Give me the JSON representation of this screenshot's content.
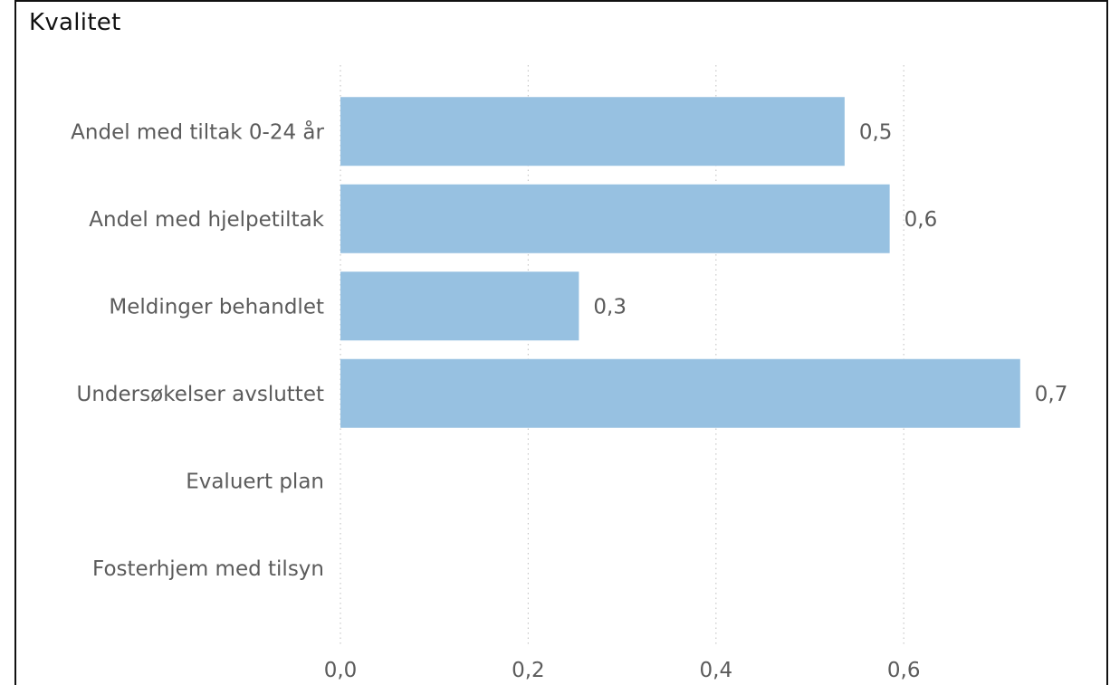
{
  "title": "Kvalitet",
  "chart_data": {
    "type": "bar",
    "orientation": "horizontal",
    "title": "Kvalitet",
    "xlabel": "",
    "ylabel": "",
    "categories": [
      "Andel med tiltak 0-24 år",
      "Andel med hjelpetiltak",
      "Meldinger behandlet",
      "Undersøkelser avsluttet",
      "Evaluert plan",
      "Fosterhjem med tilsyn"
    ],
    "values": [
      0.537,
      0.585,
      0.254,
      0.724,
      null,
      null
    ],
    "data_labels": [
      "0,5",
      "0,6",
      "0,3",
      "0,7",
      "",
      ""
    ],
    "xticks": [
      0,
      0.2,
      0.4,
      0.6
    ],
    "xtick_labels": [
      "0,0",
      "0,2",
      "0,4",
      "0,6"
    ],
    "xlim": [
      0,
      0.78
    ],
    "grid": "vertical dotted",
    "colors": {
      "bar": "#97c1e1",
      "text": "#5b5b5b",
      "grid": "#c8c8c8",
      "title": "#111111",
      "border": "#111111"
    }
  }
}
